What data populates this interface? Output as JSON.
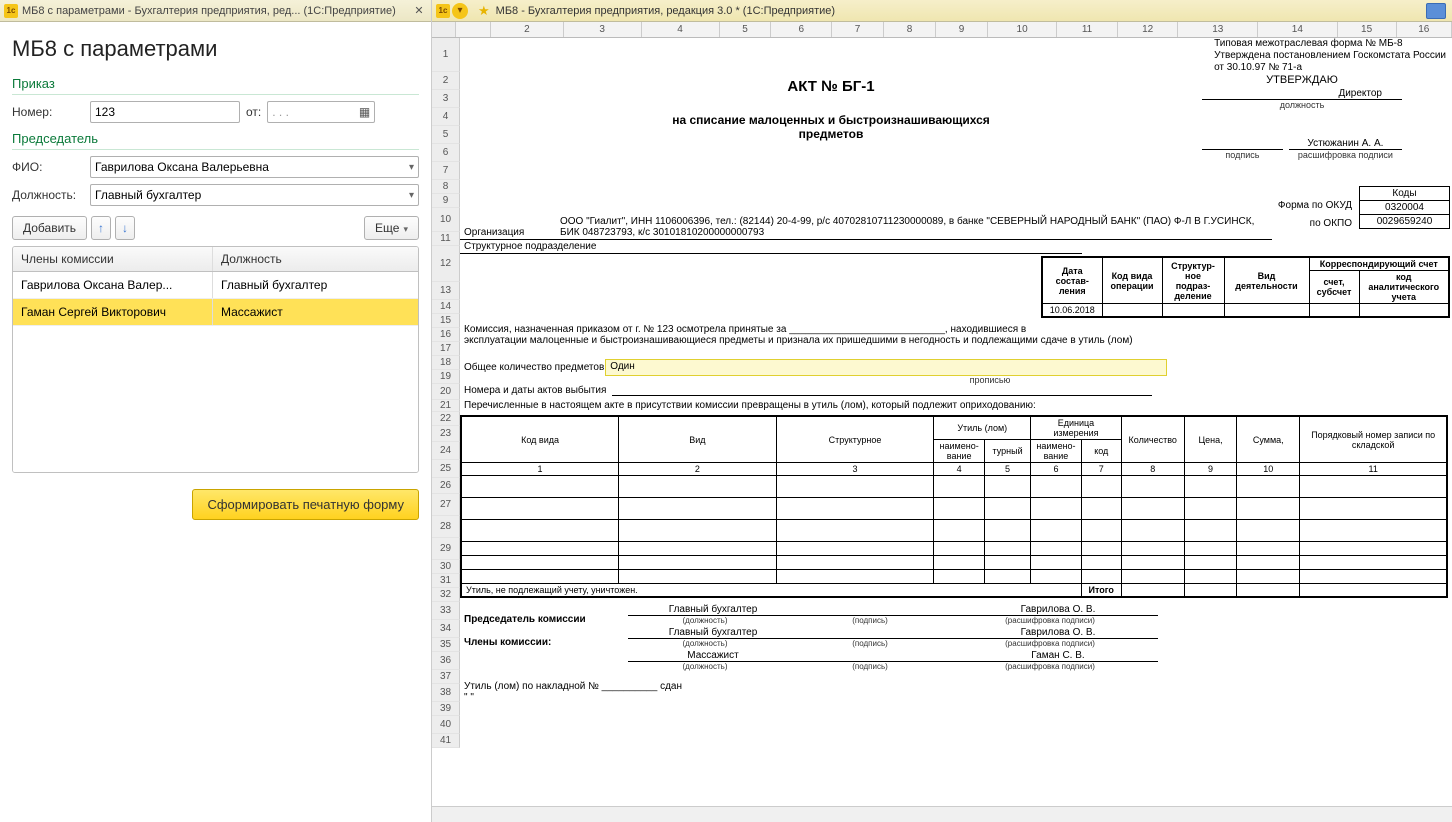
{
  "left": {
    "titlebar": "МБ8 с параметрами - Бухгалтерия предприятия, ред...   (1С:Предприятие)",
    "heading": "МБ8 с параметрами",
    "section_order": "Приказ",
    "label_number": "Номер:",
    "number_value": "123",
    "label_from": "от:",
    "date_placeholder": ". .   .",
    "section_chair": "Председатель",
    "label_fio": "ФИО:",
    "fio_value": "Гаврилова Оксана Валерьевна",
    "label_position": "Должность:",
    "position_value": "Главный бухгалтер",
    "btn_add": "Добавить",
    "btn_more": "Еще",
    "table": {
      "col1": "Члены комиссии",
      "col2": "Должность",
      "rows": [
        {
          "name": "Гаврилова Оксана Валер...",
          "pos": "Главный бухгалтер",
          "sel": false
        },
        {
          "name": "Гаман Сергей Викторович",
          "pos": "Массажист",
          "sel": true
        }
      ]
    },
    "btn_generate": "Сформировать печатную форму"
  },
  "right": {
    "titlebar": "МБ8 - Бухгалтерия предприятия, редакция 3.0 *  (1С:Предприятие)",
    "ruler_cols": [
      2,
      3,
      4,
      5,
      6,
      7,
      8,
      9,
      10,
      11,
      12,
      13,
      14,
      15,
      16
    ],
    "ruler_widths": [
      40,
      84,
      90,
      90,
      60,
      70,
      60,
      60,
      60,
      80,
      70,
      70,
      92,
      92,
      68,
      64
    ],
    "row_count": 41,
    "form_header_lines": [
      "Типовая межотраслевая форма № МБ-8",
      "Утверждена постановлением Госкомстата России",
      "от 30.10.97 № 71-а"
    ],
    "approve": {
      "title": "УТВЕРЖДАЮ",
      "pos": "Директор",
      "pos_caption": "должность",
      "name": "Устюжанин А. А.",
      "sign_caption": "подпись",
      "name_caption": "расшифровка подписи"
    },
    "act_title": "АКТ № БГ-1",
    "act_sub1": "на списание малоценных и быстроизнашивающихся",
    "act_sub2": "предметов",
    "codes": {
      "title": "Коды",
      "okud_label": "Форма по ОКУД",
      "okud": "0320004",
      "okpo_label": "по ОКПО",
      "okpo": "0029659240"
    },
    "org_label": "Организация",
    "org_value": "ООО \"Гиалит\", ИНН 1106006396, тел.: (82144) 20-4-99, р/с 40702810711230000089, в банке \"СЕВЕРНЫЙ НАРОДНЫЙ БАНК\" (ПАО) Ф-Л В Г.УСИНСК, БИК 048723793, к/с 30101810200000000793",
    "struct_label": "Структурное подразделение",
    "meta_table": {
      "headers": [
        "Дата состав-\nления",
        "Код вида операции",
        "Структур-\nное подраз-\nделение",
        "Вид деятельности",
        "Корреспондирующий счет"
      ],
      "sub": [
        "",
        "",
        "",
        "",
        "счет, субсчет",
        "код аналитического учета"
      ],
      "date": "10.06.2018"
    },
    "line16": "Комиссия, назначенная приказом от  г.  № 123  осмотрела принятые за ____________________________, находившиеся в",
    "line17": "эксплуатации малоценные и быстроизнашивающиеся предметы и признала их пришедшими в негодность и подлежащими сдаче в утиль (лом)",
    "line20_label": "Общее количество предметов",
    "line20_value": "Один",
    "line21_caption": "прописью",
    "line22": "Номера и даты актов выбытия",
    "line23": "Перечисленные в настоящем акте в присутствии комиссии превращены в утиль (лом), который подлежит оприходованию:",
    "items_headers_top": [
      "Код вида",
      "Вид",
      "Структурное",
      "Утиль (лом)",
      "Единица измерения",
      "Количество",
      "Цена,",
      "Сумма,",
      "Порядковый номер записи по складской"
    ],
    "items_headers_sub": [
      "",
      "",
      "",
      "наимено-\nвание",
      "турный",
      "наимено-\nвание",
      "код",
      "",
      "",
      "",
      ""
    ],
    "col_nums": [
      "1",
      "2",
      "3",
      "4",
      "5",
      "6",
      "7",
      "8",
      "9",
      "10",
      "11"
    ],
    "itogo": "Итого",
    "line33": "Утиль, не подлежащий учету, уничтожен.",
    "sig_chair": "Председатель комиссии",
    "sig_members": "Члены комиссии:",
    "sig_rows": [
      {
        "pos": "Главный бухгалтер",
        "name": "Гаврилова О. В."
      },
      {
        "pos": "Главный бухгалтер",
        "name": "Гаврилова О. В."
      },
      {
        "pos": "Массажист",
        "name": "Гаман С. В."
      }
    ],
    "cap_pos": "(должность)",
    "cap_sign": "(подпись)",
    "cap_name": "(расшифровка подписи)",
    "line40": "Утиль (лом) по накладной № __________ сдан",
    "line41": "\" \""
  }
}
